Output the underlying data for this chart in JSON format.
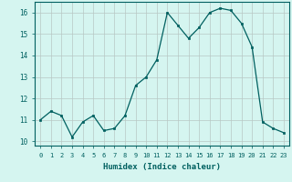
{
  "x": [
    0,
    1,
    2,
    3,
    4,
    5,
    6,
    7,
    8,
    9,
    10,
    11,
    12,
    13,
    14,
    15,
    16,
    17,
    18,
    19,
    20,
    21,
    22,
    23
  ],
  "y": [
    11.0,
    11.4,
    11.2,
    10.2,
    10.9,
    11.2,
    10.5,
    10.6,
    11.2,
    12.6,
    13.0,
    13.8,
    16.0,
    15.4,
    14.8,
    15.3,
    16.0,
    16.2,
    16.1,
    15.5,
    14.4,
    10.9,
    10.6,
    10.4
  ],
  "xlabel": "Humidex (Indice chaleur)",
  "ylim": [
    9.8,
    16.5
  ],
  "xlim": [
    -0.5,
    23.5
  ],
  "yticks": [
    10,
    11,
    12,
    13,
    14,
    15,
    16
  ],
  "xtick_labels": [
    "0",
    "1",
    "2",
    "3",
    "4",
    "5",
    "6",
    "7",
    "8",
    "9",
    "10",
    "11",
    "12",
    "13",
    "14",
    "15",
    "16",
    "17",
    "18",
    "19",
    "20",
    "21",
    "22",
    "23"
  ],
  "line_color": "#006060",
  "marker_color": "#006060",
  "bg_color": "#d5f5f0",
  "plot_bg_color": "#d5f5f0",
  "grid_color": "#b8c8c4",
  "axis_color": "#006060",
  "tick_color": "#006060",
  "label_color": "#006060"
}
